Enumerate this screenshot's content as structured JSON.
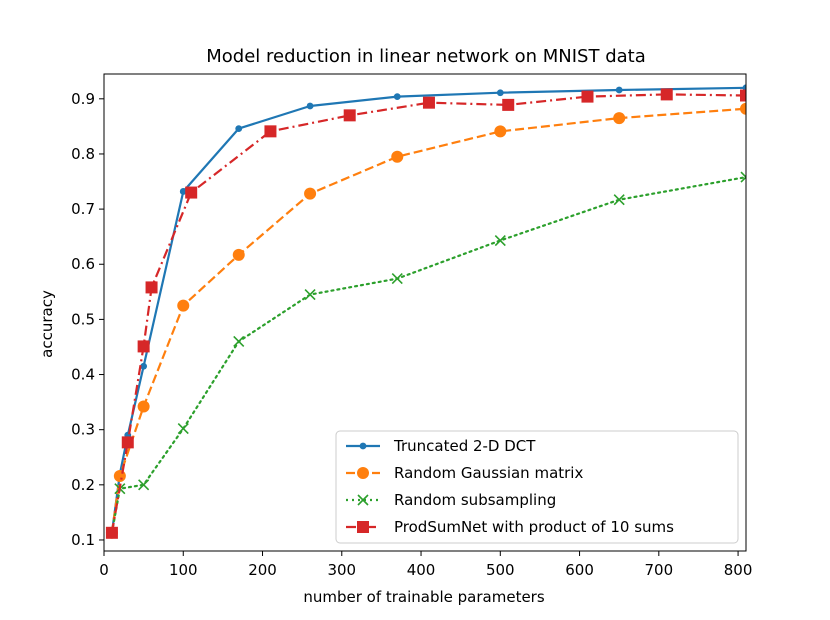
{
  "chart_data": {
    "type": "line",
    "title": "Model reduction in linear network on MNIST data",
    "xlabel": "number of trainable parameters",
    "ylabel": "accuracy",
    "xlim": [
      0,
      810
    ],
    "ylim": [
      0.08,
      0.945
    ],
    "xticks": [
      0,
      100,
      200,
      300,
      400,
      500,
      600,
      700,
      800
    ],
    "yticks": [
      0.1,
      0.2,
      0.3,
      0.4,
      0.5,
      0.6,
      0.7,
      0.8,
      0.9
    ],
    "xtick_labels": [
      "0",
      "100",
      "200",
      "300",
      "400",
      "500",
      "600",
      "700",
      "800"
    ],
    "ytick_labels": [
      "0.1",
      "0.2",
      "0.3",
      "0.4",
      "0.5",
      "0.6",
      "0.7",
      "0.8",
      "0.9"
    ],
    "grid": false,
    "legend_position": "lower-right",
    "series": [
      {
        "name": "Truncated 2-D DCT",
        "color": "#1f77b4",
        "linestyle": "solid",
        "marker": "dot",
        "x": [
          10,
          20,
          30,
          50,
          100,
          170,
          260,
          370,
          500,
          650,
          810
        ],
        "y": [
          0.113,
          0.22,
          0.29,
          0.415,
          0.732,
          0.846,
          0.887,
          0.904,
          0.911,
          0.916,
          0.92
        ]
      },
      {
        "name": "Random Gaussian matrix",
        "color": "#ff7f0e",
        "linestyle": "dashed",
        "marker": "circle",
        "x": [
          10,
          20,
          50,
          100,
          170,
          260,
          370,
          500,
          650,
          810
        ],
        "y": [
          0.113,
          0.216,
          0.342,
          0.525,
          0.617,
          0.728,
          0.795,
          0.841,
          0.865,
          0.882
        ]
      },
      {
        "name": "Random subsampling",
        "color": "#2ca02c",
        "linestyle": "dotted",
        "marker": "x",
        "x": [
          10,
          20,
          50,
          100,
          170,
          260,
          370,
          500,
          650,
          810
        ],
        "y": [
          0.113,
          0.193,
          0.2,
          0.302,
          0.46,
          0.545,
          0.574,
          0.643,
          0.717,
          0.758
        ]
      },
      {
        "name": "ProdSumNet with product of 10 sums",
        "color": "#d62728",
        "linestyle": "dashdot",
        "marker": "square",
        "x": [
          10,
          30,
          50,
          60,
          110,
          210,
          310,
          410,
          510,
          610,
          710,
          810
        ],
        "y": [
          0.113,
          0.277,
          0.451,
          0.558,
          0.73,
          0.841,
          0.87,
          0.893,
          0.889,
          0.904,
          0.908,
          0.906
        ]
      }
    ]
  }
}
